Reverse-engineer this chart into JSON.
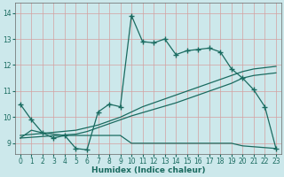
{
  "xlabel": "Humidex (Indice chaleur)",
  "xlim": [
    -0.5,
    23.5
  ],
  "ylim": [
    8.6,
    14.4
  ],
  "xticks": [
    0,
    1,
    2,
    3,
    4,
    5,
    6,
    7,
    8,
    9,
    10,
    11,
    12,
    13,
    14,
    15,
    16,
    17,
    18,
    19,
    20,
    21,
    22,
    23
  ],
  "yticks": [
    9,
    10,
    11,
    12,
    13,
    14
  ],
  "bg_color": "#cce8eb",
  "grid_color": "#b0d8dc",
  "line_color": "#1a6b60",
  "line1_x": [
    0,
    1,
    2,
    3,
    4,
    5,
    6,
    7,
    8,
    9,
    10,
    11,
    12,
    13,
    14,
    15,
    16,
    17,
    18,
    19,
    20,
    21,
    22,
    23
  ],
  "line1_y": [
    10.5,
    9.9,
    9.4,
    9.2,
    9.3,
    8.8,
    8.75,
    10.2,
    10.5,
    10.4,
    13.9,
    12.9,
    12.85,
    13.0,
    12.4,
    12.55,
    12.6,
    12.65,
    12.5,
    11.85,
    11.5,
    11.05,
    10.4,
    8.8
  ],
  "line2_x": [
    0,
    5,
    6,
    7,
    8,
    9,
    10,
    11,
    12,
    13,
    14,
    15,
    16,
    17,
    18,
    19,
    20,
    21,
    22,
    23
  ],
  "line2_y": [
    9.3,
    9.5,
    9.6,
    9.7,
    9.85,
    10.0,
    10.2,
    10.4,
    10.55,
    10.7,
    10.85,
    11.0,
    11.15,
    11.3,
    11.45,
    11.6,
    11.75,
    11.85,
    11.9,
    11.95
  ],
  "line3_x": [
    0,
    5,
    6,
    7,
    8,
    9,
    10,
    14,
    19,
    20,
    21,
    22,
    23
  ],
  "line3_y": [
    9.2,
    9.35,
    9.45,
    9.6,
    9.75,
    9.9,
    10.05,
    10.55,
    11.3,
    11.5,
    11.6,
    11.65,
    11.7
  ],
  "line4_x": [
    0,
    1,
    2,
    3,
    4,
    5,
    6,
    7,
    8,
    9,
    10,
    14,
    19,
    20,
    23
  ],
  "line4_y": [
    9.2,
    9.5,
    9.4,
    9.35,
    9.3,
    9.3,
    9.3,
    9.3,
    9.3,
    9.3,
    9.0,
    9.0,
    9.0,
    8.9,
    8.8
  ]
}
